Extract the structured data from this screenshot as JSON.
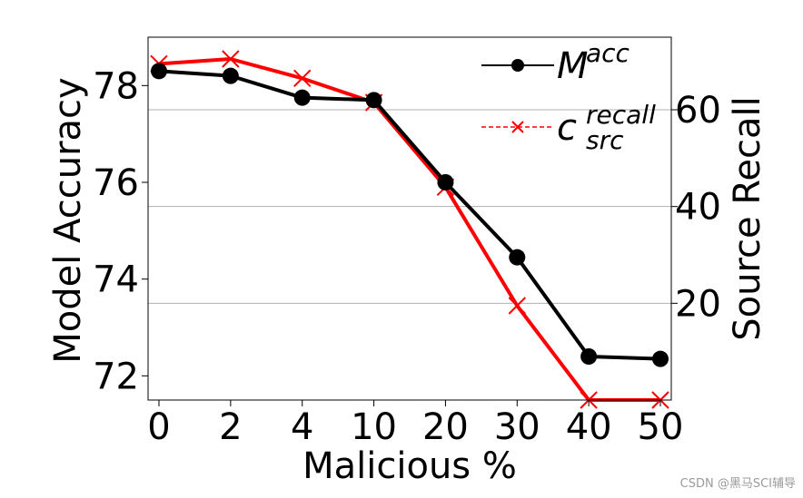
{
  "chart_data": {
    "type": "line",
    "categories": [
      "0",
      "2",
      "4",
      "10",
      "20",
      "30",
      "40",
      "50"
    ],
    "xlabel": "Malicious %",
    "ylabel_left": "Model Accuracy",
    "ylabel_right": "Source Recall",
    "ylim_left": [
      71.5,
      79.0
    ],
    "ylim_right": [
      0,
      75
    ],
    "yticks_left": [
      72,
      74,
      76,
      78
    ],
    "yticks_right": [
      20,
      40,
      60
    ],
    "grid": "horizontal, right axis",
    "legend_position": "top-right",
    "series": [
      {
        "name": "M^acc",
        "legend_base": "M",
        "legend_sup": "acc",
        "legend_sub": "",
        "axis": "left",
        "color": "#000000",
        "marker": "circle",
        "values": [
          78.3,
          78.2,
          77.75,
          77.7,
          76.0,
          74.45,
          72.4,
          72.35
        ]
      },
      {
        "name": "c_src^recall",
        "legend_base": "c",
        "legend_sup": "recall",
        "legend_sub": "src",
        "axis": "right",
        "color": "#ff0000",
        "marker": "x",
        "values": [
          69.5,
          70.5,
          66.5,
          61.5,
          44.0,
          19.5,
          0.0,
          0.0
        ]
      }
    ]
  },
  "watermark": "CSDN @黑马SCI辅导"
}
